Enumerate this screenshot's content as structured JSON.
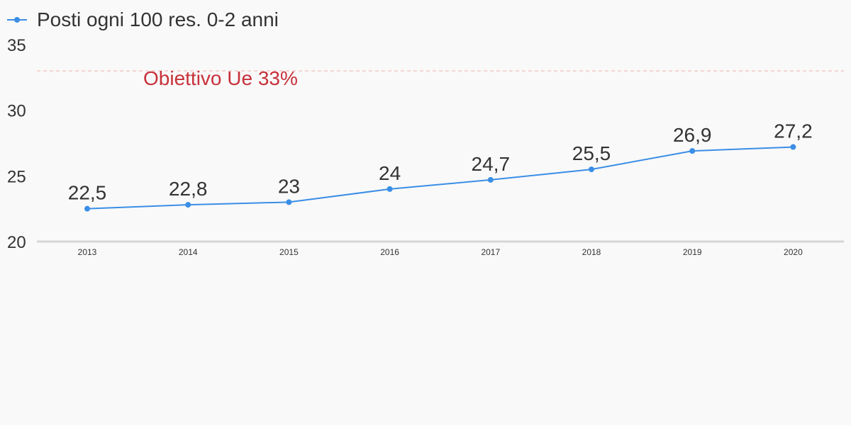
{
  "chart_data": {
    "type": "line",
    "title": "",
    "xlabel": "",
    "ylabel": "",
    "x": [
      "2013",
      "2014",
      "2015",
      "2016",
      "2017",
      "2018",
      "2019",
      "2020"
    ],
    "series": [
      {
        "name": "Posti ogni 100 res. 0-2 anni",
        "values": [
          22.5,
          22.8,
          23,
          24,
          24.7,
          25.5,
          26.9,
          27.2
        ],
        "value_labels": [
          "22,5",
          "22,8",
          "23",
          "24",
          "24,7",
          "25,5",
          "26,9",
          "27,2"
        ],
        "color": "#3a8ee6"
      }
    ],
    "ylim": [
      20,
      35
    ],
    "yticks": [
      "20",
      "25",
      "30",
      "35"
    ],
    "grid": false,
    "legend_position": "top-left",
    "annotations": [
      {
        "type": "hline",
        "y": 33,
        "label": "Obiettivo Ue 33%",
        "color": "#c7313a",
        "line_color": "#f4b6b6",
        "style": "dashed"
      }
    ],
    "axis_color": "#d6d6d6",
    "background": "#f9f9f9"
  }
}
